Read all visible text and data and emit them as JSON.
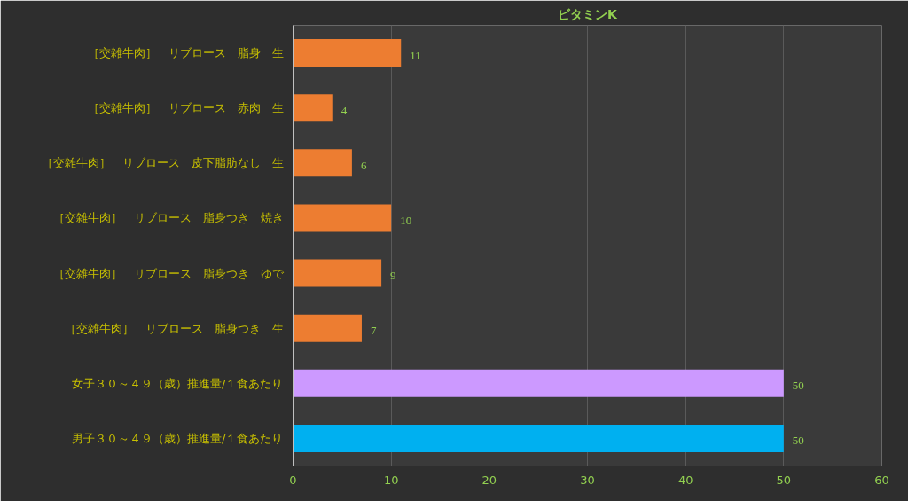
{
  "chart_data": {
    "type": "bar",
    "orientation": "horizontal",
    "title": "ビタミンK",
    "categories": [
      "［交雑牛肉］　リブロース　脂身　生",
      "［交雑牛肉］　リブロース　赤肉　生",
      "［交雑牛肉］　リブロース　皮下脂肪なし　生",
      "［交雑牛肉］　リブロース　脂身つき　焼き",
      "［交雑牛肉］　リブロース　脂身つき　ゆで",
      "［交雑牛肉］　リブロース　脂身つき　生",
      "女子３０～４９（歳）推進量/１食あたり",
      "男子３０～４９（歳）推進量/１食あたり"
    ],
    "values": [
      11,
      4,
      6,
      10,
      9,
      7,
      50,
      50
    ],
    "colors": [
      "#ed7d31",
      "#ed7d31",
      "#ed7d31",
      "#ed7d31",
      "#ed7d31",
      "#ed7d31",
      "#cc99ff",
      "#00b0f0"
    ],
    "xlim": [
      0,
      60
    ],
    "xticks": [
      0,
      10,
      20,
      30,
      40,
      50,
      60
    ],
    "grid": "x",
    "data_labels": true
  }
}
